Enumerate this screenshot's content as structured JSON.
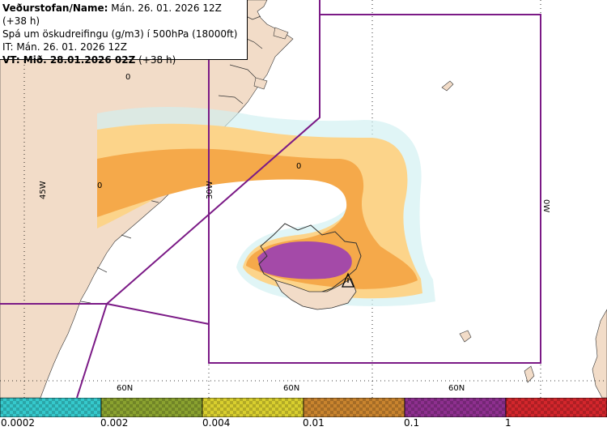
{
  "header": {
    "line1_bold": "Veðurstofan/Name:",
    "line1_rest": " Mán. 26. 01. 2026 12Z (+38 h)",
    "line2": "Spá um öskudreifingu (g/m3) í 500hPa (18000ft)",
    "line3": "IT: Mán. 26. 01. 2026 12Z",
    "line4_bold": "VT: Mið. 28.01.2026 02Z",
    "line4_rest": " (+38 h)"
  },
  "map": {
    "longitude_labels": [
      "45W",
      "30W",
      "0W"
    ],
    "latitude_labels": [
      "60N",
      "60N",
      "60N"
    ],
    "zero_markers": [
      "0",
      "0",
      "0"
    ],
    "colors": {
      "land": "#f2dcc8",
      "sea": "#ffffff",
      "boundary": "#7b1a86",
      "ash_light": "#fcd48a",
      "ash_medium": "#f5a94a",
      "ash_heavy": "#a44aa8",
      "ash_trace": "#8fe3e8"
    }
  },
  "legend": {
    "colors": [
      "#35c9cc",
      "#8aa22f",
      "#d9cf2e",
      "#c9842e",
      "#8e2f8f",
      "#d3262c"
    ],
    "ticks": [
      "0.0002",
      "0.002",
      "0.004",
      "0.01",
      "0.1",
      "1"
    ]
  }
}
